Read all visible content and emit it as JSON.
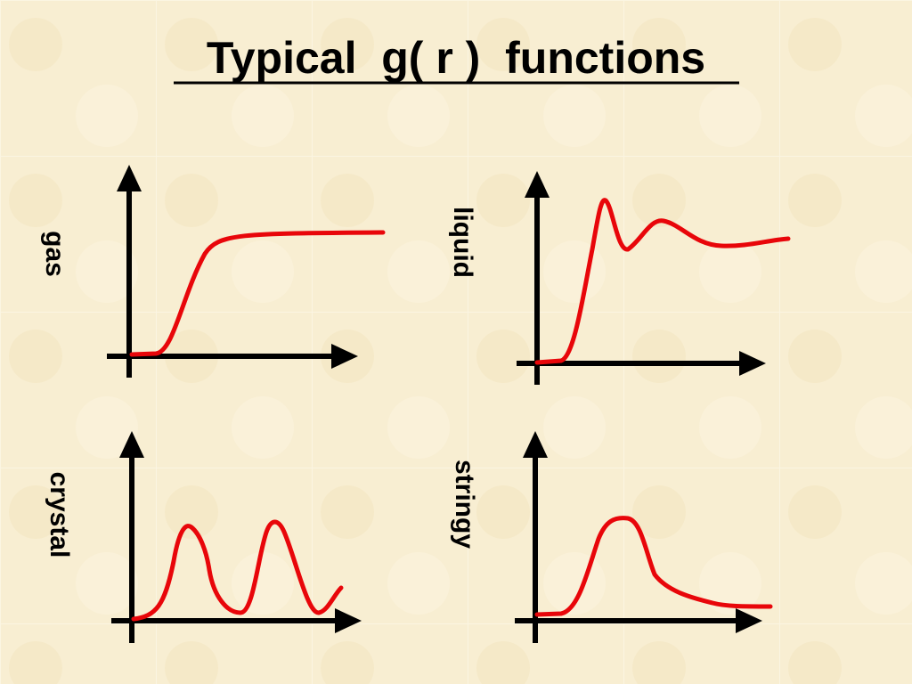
{
  "title": "Typical  g( r )  functions",
  "panels": [
    {
      "label": "gas"
    },
    {
      "label": "liquid"
    },
    {
      "label": "crystal"
    },
    {
      "label": "stringy"
    }
  ]
}
